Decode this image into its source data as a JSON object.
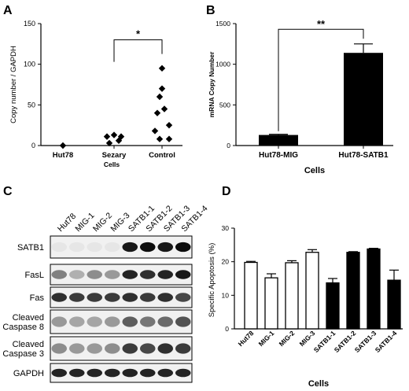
{
  "panels": {
    "A": {
      "label": "A"
    },
    "B": {
      "label": "B"
    },
    "C": {
      "label": "C"
    },
    "D": {
      "label": "D"
    }
  },
  "chart_data": [
    {
      "panel": "A",
      "type": "scatter",
      "ylabel": "Copy number / GAPDH",
      "xlabel": "Cells",
      "categories": [
        "Hut78",
        "Sezary",
        "Control"
      ],
      "ylim": [
        0,
        150
      ],
      "yticks": [
        "0",
        "50",
        "100",
        "150"
      ],
      "points": [
        {
          "group": "Hut78",
          "x": 0,
          "y": 0
        },
        {
          "group": "Sezary",
          "x": -0.15,
          "y": 11
        },
        {
          "group": "Sezary",
          "x": 0.0,
          "y": 13
        },
        {
          "group": "Sezary",
          "x": 0.15,
          "y": 11
        },
        {
          "group": "Sezary",
          "x": -0.1,
          "y": 3
        },
        {
          "group": "Sezary",
          "x": 0.1,
          "y": 6
        },
        {
          "group": "Control",
          "x": 0.0,
          "y": 95
        },
        {
          "group": "Control",
          "x": 0.0,
          "y": 70
        },
        {
          "group": "Control",
          "x": -0.05,
          "y": 60
        },
        {
          "group": "Control",
          "x": 0.05,
          "y": 45
        },
        {
          "group": "Control",
          "x": -0.1,
          "y": 40
        },
        {
          "group": "Control",
          "x": 0.15,
          "y": 25
        },
        {
          "group": "Control",
          "x": -0.15,
          "y": 18
        },
        {
          "group": "Control",
          "x": 0.15,
          "y": 8
        },
        {
          "group": "Control",
          "x": -0.05,
          "y": 8
        }
      ],
      "significance": {
        "from": "Sezary",
        "to": "Control",
        "label": "*",
        "y": 130
      }
    },
    {
      "panel": "B",
      "type": "bar",
      "ylabel": "mRNA Copy Number",
      "xlabel": "Cells",
      "categories": [
        "Hut78-MIG",
        "Hut78-SATB1"
      ],
      "values": [
        130,
        1140
      ],
      "errors": [
        8,
        110
      ],
      "colors": [
        "#000000",
        "#000000"
      ],
      "ylim": [
        0,
        1500
      ],
      "yticks": [
        "0",
        "500",
        "1000",
        "1500"
      ],
      "significance": {
        "from": "Hut78-MIG",
        "to": "Hut78-SATB1",
        "label": "**",
        "y": 1430
      }
    },
    {
      "panel": "D",
      "type": "bar",
      "ylabel": "Specific Apoptosis (%)",
      "xlabel": "Cells",
      "categories": [
        "Hut78",
        "MIG-1",
        "MIG-2",
        "MIG-3",
        "SATB1-1",
        "SATB1-2",
        "SATB1-3",
        "SATB1-4"
      ],
      "values": [
        19.8,
        15.2,
        19.7,
        22.8,
        13.7,
        22.8,
        23.8,
        14.5
      ],
      "errors": [
        0.3,
        1.2,
        0.6,
        0.8,
        1.3,
        0.2,
        0.2,
        3.0
      ],
      "fills": [
        "white",
        "white",
        "white",
        "white",
        "black",
        "black",
        "black",
        "black"
      ],
      "ylim": [
        0,
        30
      ],
      "yticks": [
        "0",
        "10",
        "20",
        "30"
      ]
    }
  ],
  "blot": {
    "lanes": [
      "Hut78",
      "MIG-1",
      "MIG-2",
      "MIG-3",
      "SATB1-1",
      "SATB1-2",
      "SATB1-3",
      "SATB1-4"
    ],
    "rows": [
      {
        "label": "SATB1",
        "intensities": [
          0.02,
          0.02,
          0.02,
          0.02,
          0.9,
          0.95,
          0.9,
          0.95
        ]
      },
      {
        "label": "FasL",
        "intensities": [
          0.45,
          0.25,
          0.4,
          0.35,
          0.85,
          0.8,
          0.85,
          0.9
        ]
      },
      {
        "label": "Fas",
        "intensities": [
          0.8,
          0.75,
          0.75,
          0.75,
          0.8,
          0.75,
          0.8,
          0.7
        ]
      },
      {
        "label": "Cleaved\nCaspase 8",
        "intensities": [
          0.35,
          0.3,
          0.3,
          0.35,
          0.6,
          0.5,
          0.55,
          0.65
        ]
      },
      {
        "label": "Cleaved\nCaspase 3",
        "intensities": [
          0.4,
          0.35,
          0.35,
          0.4,
          0.75,
          0.7,
          0.8,
          0.75
        ]
      },
      {
        "label": "GAPDH",
        "intensities": [
          0.85,
          0.85,
          0.85,
          0.85,
          0.85,
          0.85,
          0.85,
          0.85
        ]
      }
    ]
  }
}
